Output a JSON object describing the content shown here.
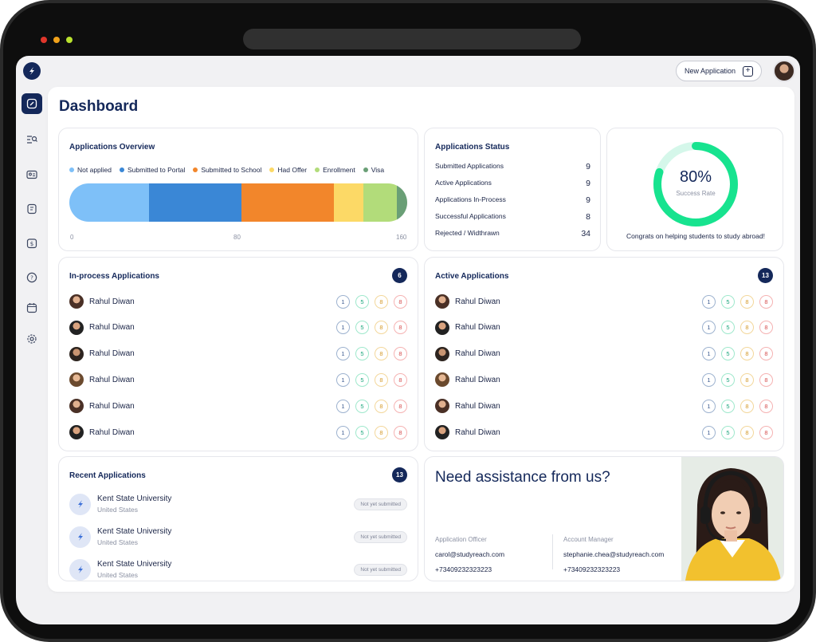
{
  "header": {
    "new_application_label": "New Application"
  },
  "page": {
    "title": "Dashboard"
  },
  "overview": {
    "title": "Applications Overview",
    "legend": [
      {
        "label": "Not applied",
        "color": "#7ec0f8"
      },
      {
        "label": "Submitted to Portal",
        "color": "#3a87d6"
      },
      {
        "label": "Submitted to School",
        "color": "#f2862b"
      },
      {
        "label": "Had Offer",
        "color": "#fcd966"
      },
      {
        "label": "Enrollment",
        "color": "#b2dc7a"
      },
      {
        "label": "Visa",
        "color": "#6a9f76"
      }
    ],
    "axis": [
      "0",
      "80",
      "160"
    ]
  },
  "chart_data": {
    "type": "bar",
    "orientation": "horizontal-stacked",
    "categories": [
      "Not applied",
      "Submitted to Portal",
      "Submitted to School",
      "Had Offer",
      "Enrollment",
      "Visa"
    ],
    "values": [
      38,
      44,
      44,
      14,
      16,
      5
    ],
    "xlim": [
      0,
      160
    ],
    "xticks": [
      0,
      80,
      160
    ]
  },
  "status": {
    "title": "Applications Status",
    "rows": [
      {
        "label": "Submitted Applications",
        "value": "9"
      },
      {
        "label": "Active Applications",
        "value": "9"
      },
      {
        "label": "Applications In-Process",
        "value": "9"
      },
      {
        "label": "Successful Applications",
        "value": "8"
      },
      {
        "label": "Rejected / Widthrawn",
        "value": "34"
      }
    ]
  },
  "success": {
    "percent_text": "80%",
    "percent_value": 0.8,
    "label": "Success Rate",
    "message": "Congrats on helping students to study abroad!",
    "ring_color": "#17e38f",
    "track_color": "#d5f7ea"
  },
  "in_process": {
    "title": "In-process Applications",
    "count": "6",
    "rows": [
      {
        "name": "Rahul Diwan",
        "counts": [
          "1",
          "5",
          "8",
          "8"
        ]
      },
      {
        "name": "Rahul Diwan",
        "counts": [
          "1",
          "5",
          "8",
          "8"
        ]
      },
      {
        "name": "Rahul Diwan",
        "counts": [
          "1",
          "5",
          "8",
          "8"
        ]
      },
      {
        "name": "Rahul Diwan",
        "counts": [
          "1",
          "5",
          "8",
          "8"
        ]
      },
      {
        "name": "Rahul Diwan",
        "counts": [
          "1",
          "5",
          "8",
          "8"
        ]
      },
      {
        "name": "Rahul Diwan",
        "counts": [
          "1",
          "5",
          "8",
          "8"
        ]
      }
    ]
  },
  "active": {
    "title": "Active Applications",
    "count": "13",
    "rows": [
      {
        "name": "Rahul Diwan",
        "counts": [
          "1",
          "5",
          "8",
          "8"
        ]
      },
      {
        "name": "Rahul Diwan",
        "counts": [
          "1",
          "5",
          "8",
          "8"
        ]
      },
      {
        "name": "Rahul Diwan",
        "counts": [
          "1",
          "5",
          "8",
          "8"
        ]
      },
      {
        "name": "Rahul Diwan",
        "counts": [
          "1",
          "5",
          "8",
          "8"
        ]
      },
      {
        "name": "Rahul Diwan",
        "counts": [
          "1",
          "5",
          "8",
          "8"
        ]
      },
      {
        "name": "Rahul Diwan",
        "counts": [
          "1",
          "5",
          "8",
          "8"
        ]
      }
    ]
  },
  "recent": {
    "title": "Recent Applications",
    "count": "13",
    "rows": [
      {
        "name": "Kent State University",
        "country": "United States",
        "status": "Not yet submitted"
      },
      {
        "name": "Kent State University",
        "country": "United States",
        "status": "Not yet submitted"
      },
      {
        "name": "Kent State University",
        "country": "United States",
        "status": "Not yet submitted"
      }
    ]
  },
  "assist": {
    "title": "Need assistance from us?",
    "contacts": [
      {
        "role": "Application Officer",
        "email": "carol@studyreach.com",
        "phone": "+73409232323223"
      },
      {
        "role": "Account Manager",
        "email": "stephanie.chea@studyreach.com",
        "phone": "+73409232323223"
      }
    ]
  },
  "colors": {
    "brand": "#14285a"
  }
}
